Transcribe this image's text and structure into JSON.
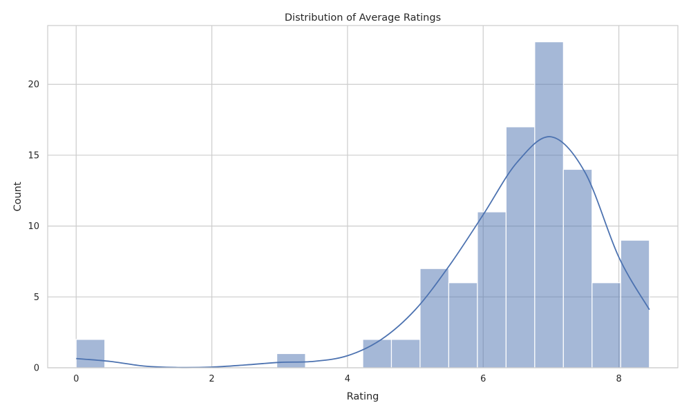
{
  "chart_data": {
    "type": "bar",
    "title": "Distribution of Average Ratings",
    "xlabel": "Rating",
    "ylabel": "Count",
    "xlim": [
      -0.42,
      8.87
    ],
    "ylim": [
      0,
      24.15
    ],
    "xticks": [
      0,
      2,
      4,
      6,
      8
    ],
    "yticks": [
      0,
      5,
      10,
      15,
      20
    ],
    "grid": true,
    "bin_width": 0.4225,
    "bins": [
      {
        "x0": 0.0,
        "count": 2
      },
      {
        "x0": 0.4225,
        "count": 0
      },
      {
        "x0": 0.845,
        "count": 0
      },
      {
        "x0": 1.2675,
        "count": 0
      },
      {
        "x0": 1.69,
        "count": 0
      },
      {
        "x0": 2.1125,
        "count": 0
      },
      {
        "x0": 2.535,
        "count": 0
      },
      {
        "x0": 2.9575,
        "count": 1
      },
      {
        "x0": 3.38,
        "count": 0
      },
      {
        "x0": 3.8025,
        "count": 0
      },
      {
        "x0": 4.225,
        "count": 2
      },
      {
        "x0": 4.6475,
        "count": 2
      },
      {
        "x0": 5.07,
        "count": 7
      },
      {
        "x0": 5.4925,
        "count": 6
      },
      {
        "x0": 5.915,
        "count": 11
      },
      {
        "x0": 6.3375,
        "count": 17
      },
      {
        "x0": 6.76,
        "count": 23
      },
      {
        "x0": 7.1825,
        "count": 14
      },
      {
        "x0": 7.605,
        "count": 6
      },
      {
        "x0": 8.0275,
        "count": 9
      }
    ],
    "kde": {
      "x": [
        0.0,
        0.5,
        1.0,
        1.5,
        2.0,
        2.5,
        3.0,
        3.5,
        4.0,
        4.5,
        5.0,
        5.5,
        6.0,
        6.5,
        7.0,
        7.5,
        8.0,
        8.45
      ],
      "y": [
        0.65,
        0.45,
        0.12,
        0.02,
        0.05,
        0.2,
        0.38,
        0.45,
        0.85,
        2.0,
        4.1,
        7.2,
        10.8,
        14.5,
        16.3,
        13.8,
        7.8,
        4.1
      ]
    },
    "colors": {
      "bar_fill": "#4c72b0",
      "bar_opacity": 0.5,
      "bar_edge": "#ffffff",
      "kde_line": "#4c72b0",
      "grid": "#cccccc",
      "frame": "#cccccc"
    }
  }
}
